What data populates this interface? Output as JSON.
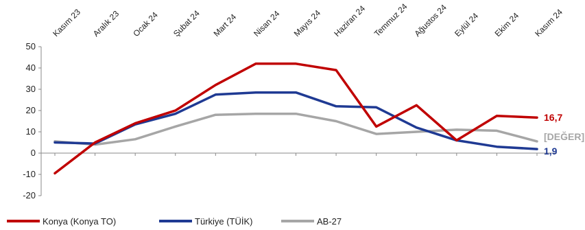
{
  "chart_data": {
    "type": "line",
    "title": "",
    "xlabel": "",
    "ylabel": "",
    "categories": [
      "Kasım 23",
      "Aralık 23",
      "Ocak 24",
      "Şubat 24",
      "Mart 24",
      "Nisan 24",
      "Mayıs 24",
      "Haziran 24",
      "Temmuz 24",
      "Ağustos 24",
      "Eylül 24",
      "Ekim 24",
      "Kasım 24"
    ],
    "ylim": [
      -20,
      50
    ],
    "yticks": [
      -20,
      -10,
      0,
      10,
      20,
      30,
      40,
      50
    ],
    "grid": false,
    "legend_position": "bottom",
    "series": [
      {
        "name": "Konya (Konya TO)",
        "color": "#c00000",
        "values": [
          -9.5,
          5,
          14,
          20,
          32,
          42,
          42,
          39,
          12.5,
          22.5,
          6,
          17.5,
          16.7
        ],
        "end_label": "16,7"
      },
      {
        "name": "Türkiye (TÜİK)",
        "color": "#1f3a93",
        "values": [
          5,
          4.5,
          13.5,
          18.5,
          27.5,
          28.5,
          28.5,
          22,
          21.5,
          12,
          6,
          3,
          1.9
        ],
        "end_label": "1,9"
      },
      {
        "name": "AB-27",
        "color": "#a6a6a6",
        "values": [
          5.5,
          4,
          6.5,
          12.5,
          18,
          18.5,
          18.5,
          15,
          9,
          10,
          11,
          10.5,
          5.5
        ],
        "end_label": "[DEĞER]"
      }
    ]
  }
}
